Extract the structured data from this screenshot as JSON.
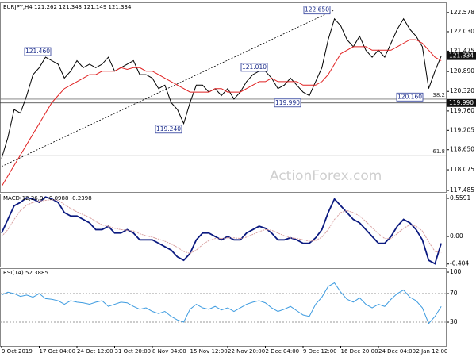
{
  "chart_data": [
    {
      "type": "line",
      "title": "EURJPY,H4  121.262 121.343 121.149 121.334",
      "ylim": [
        117.44,
        122.87
      ],
      "yticks": [
        122.578,
        {
          "value": 122.03,
          "label": "122.030"
        },
        121.475,
        {
          "value": 120.89,
          "label": "120.890"
        },
        {
          "value": 120.32,
          "label": "120.320"
        },
        {
          "value": 119.76,
          "label": "119.760"
        },
        119.205,
        {
          "value": 118.65,
          "label": "118.650"
        },
        118.075,
        117.485
      ],
      "series": [
        {
          "name": "EURJPY",
          "color": "#000000",
          "values": [
            118.4,
            119.0,
            119.8,
            119.7,
            120.2,
            120.8,
            121.0,
            121.3,
            121.2,
            121.1,
            120.7,
            120.9,
            121.2,
            121.0,
            121.1,
            121.0,
            121.1,
            121.3,
            120.9,
            121.0,
            121.1,
            121.2,
            120.8,
            120.8,
            120.7,
            120.4,
            120.5,
            120.0,
            119.8,
            119.4,
            120.0,
            120.5,
            120.5,
            120.3,
            120.4,
            120.2,
            120.4,
            120.1,
            120.3,
            120.6,
            120.8,
            120.9,
            120.9,
            120.7,
            120.4,
            120.5,
            120.7,
            120.5,
            120.3,
            120.2,
            120.6,
            121.0,
            121.8,
            122.4,
            122.2,
            121.8,
            121.6,
            121.9,
            121.5,
            121.3,
            121.5,
            121.3,
            121.7,
            122.1,
            122.4,
            122.1,
            121.9,
            121.6,
            120.4,
            120.9,
            121.334
          ]
        },
        {
          "name": "MA",
          "color": "#e02020",
          "values": [
            117.6,
            117.9,
            118.2,
            118.5,
            118.8,
            119.1,
            119.4,
            119.7,
            120.0,
            120.2,
            120.4,
            120.5,
            120.6,
            120.7,
            120.8,
            120.8,
            120.9,
            120.9,
            120.9,
            121.0,
            120.95,
            121.0,
            121.0,
            120.9,
            120.9,
            120.8,
            120.7,
            120.6,
            120.5,
            120.4,
            120.3,
            120.3,
            120.3,
            120.3,
            120.4,
            120.4,
            120.3,
            120.3,
            120.3,
            120.4,
            120.5,
            120.6,
            120.6,
            120.7,
            120.6,
            120.6,
            120.6,
            120.6,
            120.5,
            120.5,
            120.5,
            120.6,
            120.8,
            121.1,
            121.4,
            121.5,
            121.6,
            121.6,
            121.6,
            121.5,
            121.5,
            121.5,
            121.5,
            121.6,
            121.7,
            121.8,
            121.8,
            121.7,
            121.5,
            121.3,
            121.2
          ]
        }
      ],
      "trendline": [
        118.17,
        122.65
      ],
      "annotations": [
        {
          "value": 122.65,
          "label": "122.650"
        },
        {
          "value": 121.46,
          "label": "121.460"
        },
        {
          "value": 121.01,
          "label": "121.010"
        },
        {
          "value": 119.99,
          "label": "119.990"
        },
        {
          "value": 120.16,
          "label": "120.160"
        },
        {
          "value": 119.24,
          "label": "119.240"
        }
      ],
      "levels": [
        {
          "value": 121.334,
          "label": "121.334"
        },
        {
          "value": 119.99,
          "label": "119.990"
        }
      ],
      "fib_levels": [
        {
          "value": 120.1,
          "label": "38.2"
        },
        {
          "value": 118.49,
          "label": "61.8"
        }
      ],
      "watermark": "ActionForex.com"
    },
    {
      "type": "line",
      "title": "MACD(12,26,9) -0.0988 -0.2398",
      "ylim": [
        -0.442,
        0.629
      ],
      "yticks": [
        0.5591,
        {
          "value": 0,
          "label": "0.00"
        },
        -0.404
      ],
      "series": [
        {
          "name": "MACD",
          "color": "#0b1a80",
          "values": [
            0.05,
            0.25,
            0.45,
            0.5,
            0.57,
            0.55,
            0.5,
            0.58,
            0.55,
            0.5,
            0.35,
            0.3,
            0.3,
            0.25,
            0.2,
            0.1,
            0.1,
            0.15,
            0.05,
            0.05,
            0.1,
            0.05,
            -0.05,
            -0.05,
            -0.05,
            -0.1,
            -0.15,
            -0.2,
            -0.3,
            -0.35,
            -0.25,
            -0.05,
            0.05,
            0.05,
            0.0,
            -0.05,
            0.0,
            -0.05,
            -0.05,
            0.05,
            0.1,
            0.15,
            0.12,
            0.05,
            -0.05,
            -0.05,
            -0.02,
            -0.05,
            -0.1,
            -0.1,
            -0.02,
            0.1,
            0.35,
            0.55,
            0.45,
            0.35,
            0.25,
            0.2,
            0.1,
            0.0,
            -0.1,
            -0.1,
            0.0,
            0.15,
            0.25,
            0.2,
            0.1,
            -0.05,
            -0.35,
            -0.4,
            -0.1
          ]
        },
        {
          "name": "Signal",
          "color": "#d8a0a0",
          "values": [
            0.0,
            0.1,
            0.25,
            0.38,
            0.46,
            0.5,
            0.52,
            0.53,
            0.54,
            0.53,
            0.47,
            0.41,
            0.36,
            0.32,
            0.28,
            0.22,
            0.17,
            0.15,
            0.12,
            0.1,
            0.09,
            0.08,
            0.04,
            0.01,
            -0.01,
            -0.04,
            -0.07,
            -0.11,
            -0.16,
            -0.22,
            -0.25,
            -0.2,
            -0.12,
            -0.06,
            -0.03,
            -0.03,
            -0.02,
            -0.02,
            -0.03,
            -0.01,
            0.03,
            0.07,
            0.1,
            0.09,
            0.05,
            0.01,
            -0.02,
            -0.03,
            -0.05,
            -0.07,
            -0.06,
            -0.01,
            0.1,
            0.25,
            0.35,
            0.38,
            0.35,
            0.3,
            0.22,
            0.13,
            0.04,
            -0.03,
            -0.03,
            0.04,
            0.12,
            0.17,
            0.15,
            0.08,
            -0.08,
            -0.22,
            -0.24
          ]
        }
      ]
    },
    {
      "type": "line",
      "title": "RSI(14) 52.3885",
      "ylim": [
        -3.3,
        105.6
      ],
      "yticks": [
        100,
        70,
        30
      ],
      "categories": [
        "9 Oct 2019",
        null,
        null,
        null,
        null,
        null,
        "17 Oct 04:00",
        null,
        null,
        null,
        null,
        null,
        "24 Oct 12:00",
        null,
        null,
        null,
        null,
        null,
        "31 Oct 20:00",
        null,
        null,
        null,
        null,
        null,
        "8 Nov 04:00",
        null,
        null,
        null,
        null,
        null,
        "15 Nov 12:00",
        null,
        null,
        null,
        null,
        null,
        "22 Nov 20:00",
        null,
        null,
        null,
        null,
        null,
        "2 Dec 04:00",
        null,
        null,
        null,
        null,
        null,
        "9 Dec 12:00",
        null,
        null,
        null,
        null,
        null,
        "16 Dec 20:00",
        null,
        null,
        null,
        null,
        null,
        "24 Dec 04:00",
        null,
        null,
        null,
        null,
        null,
        "2 Jan 12:00",
        null,
        null,
        null,
        null
      ],
      "series": [
        {
          "name": "RSI",
          "color": "#3d9be0",
          "values": [
            68,
            72,
            70,
            66,
            68,
            65,
            70,
            63,
            62,
            60,
            55,
            60,
            58,
            57,
            55,
            58,
            60,
            52,
            55,
            58,
            57,
            52,
            48,
            50,
            45,
            42,
            45,
            38,
            33,
            30,
            48,
            55,
            50,
            48,
            52,
            47,
            50,
            45,
            50,
            55,
            58,
            60,
            57,
            50,
            45,
            48,
            52,
            46,
            40,
            38,
            55,
            65,
            80,
            85,
            72,
            62,
            58,
            64,
            55,
            50,
            55,
            52,
            62,
            70,
            75,
            65,
            60,
            50,
            28,
            38,
            52
          ]
        }
      ]
    }
  ]
}
